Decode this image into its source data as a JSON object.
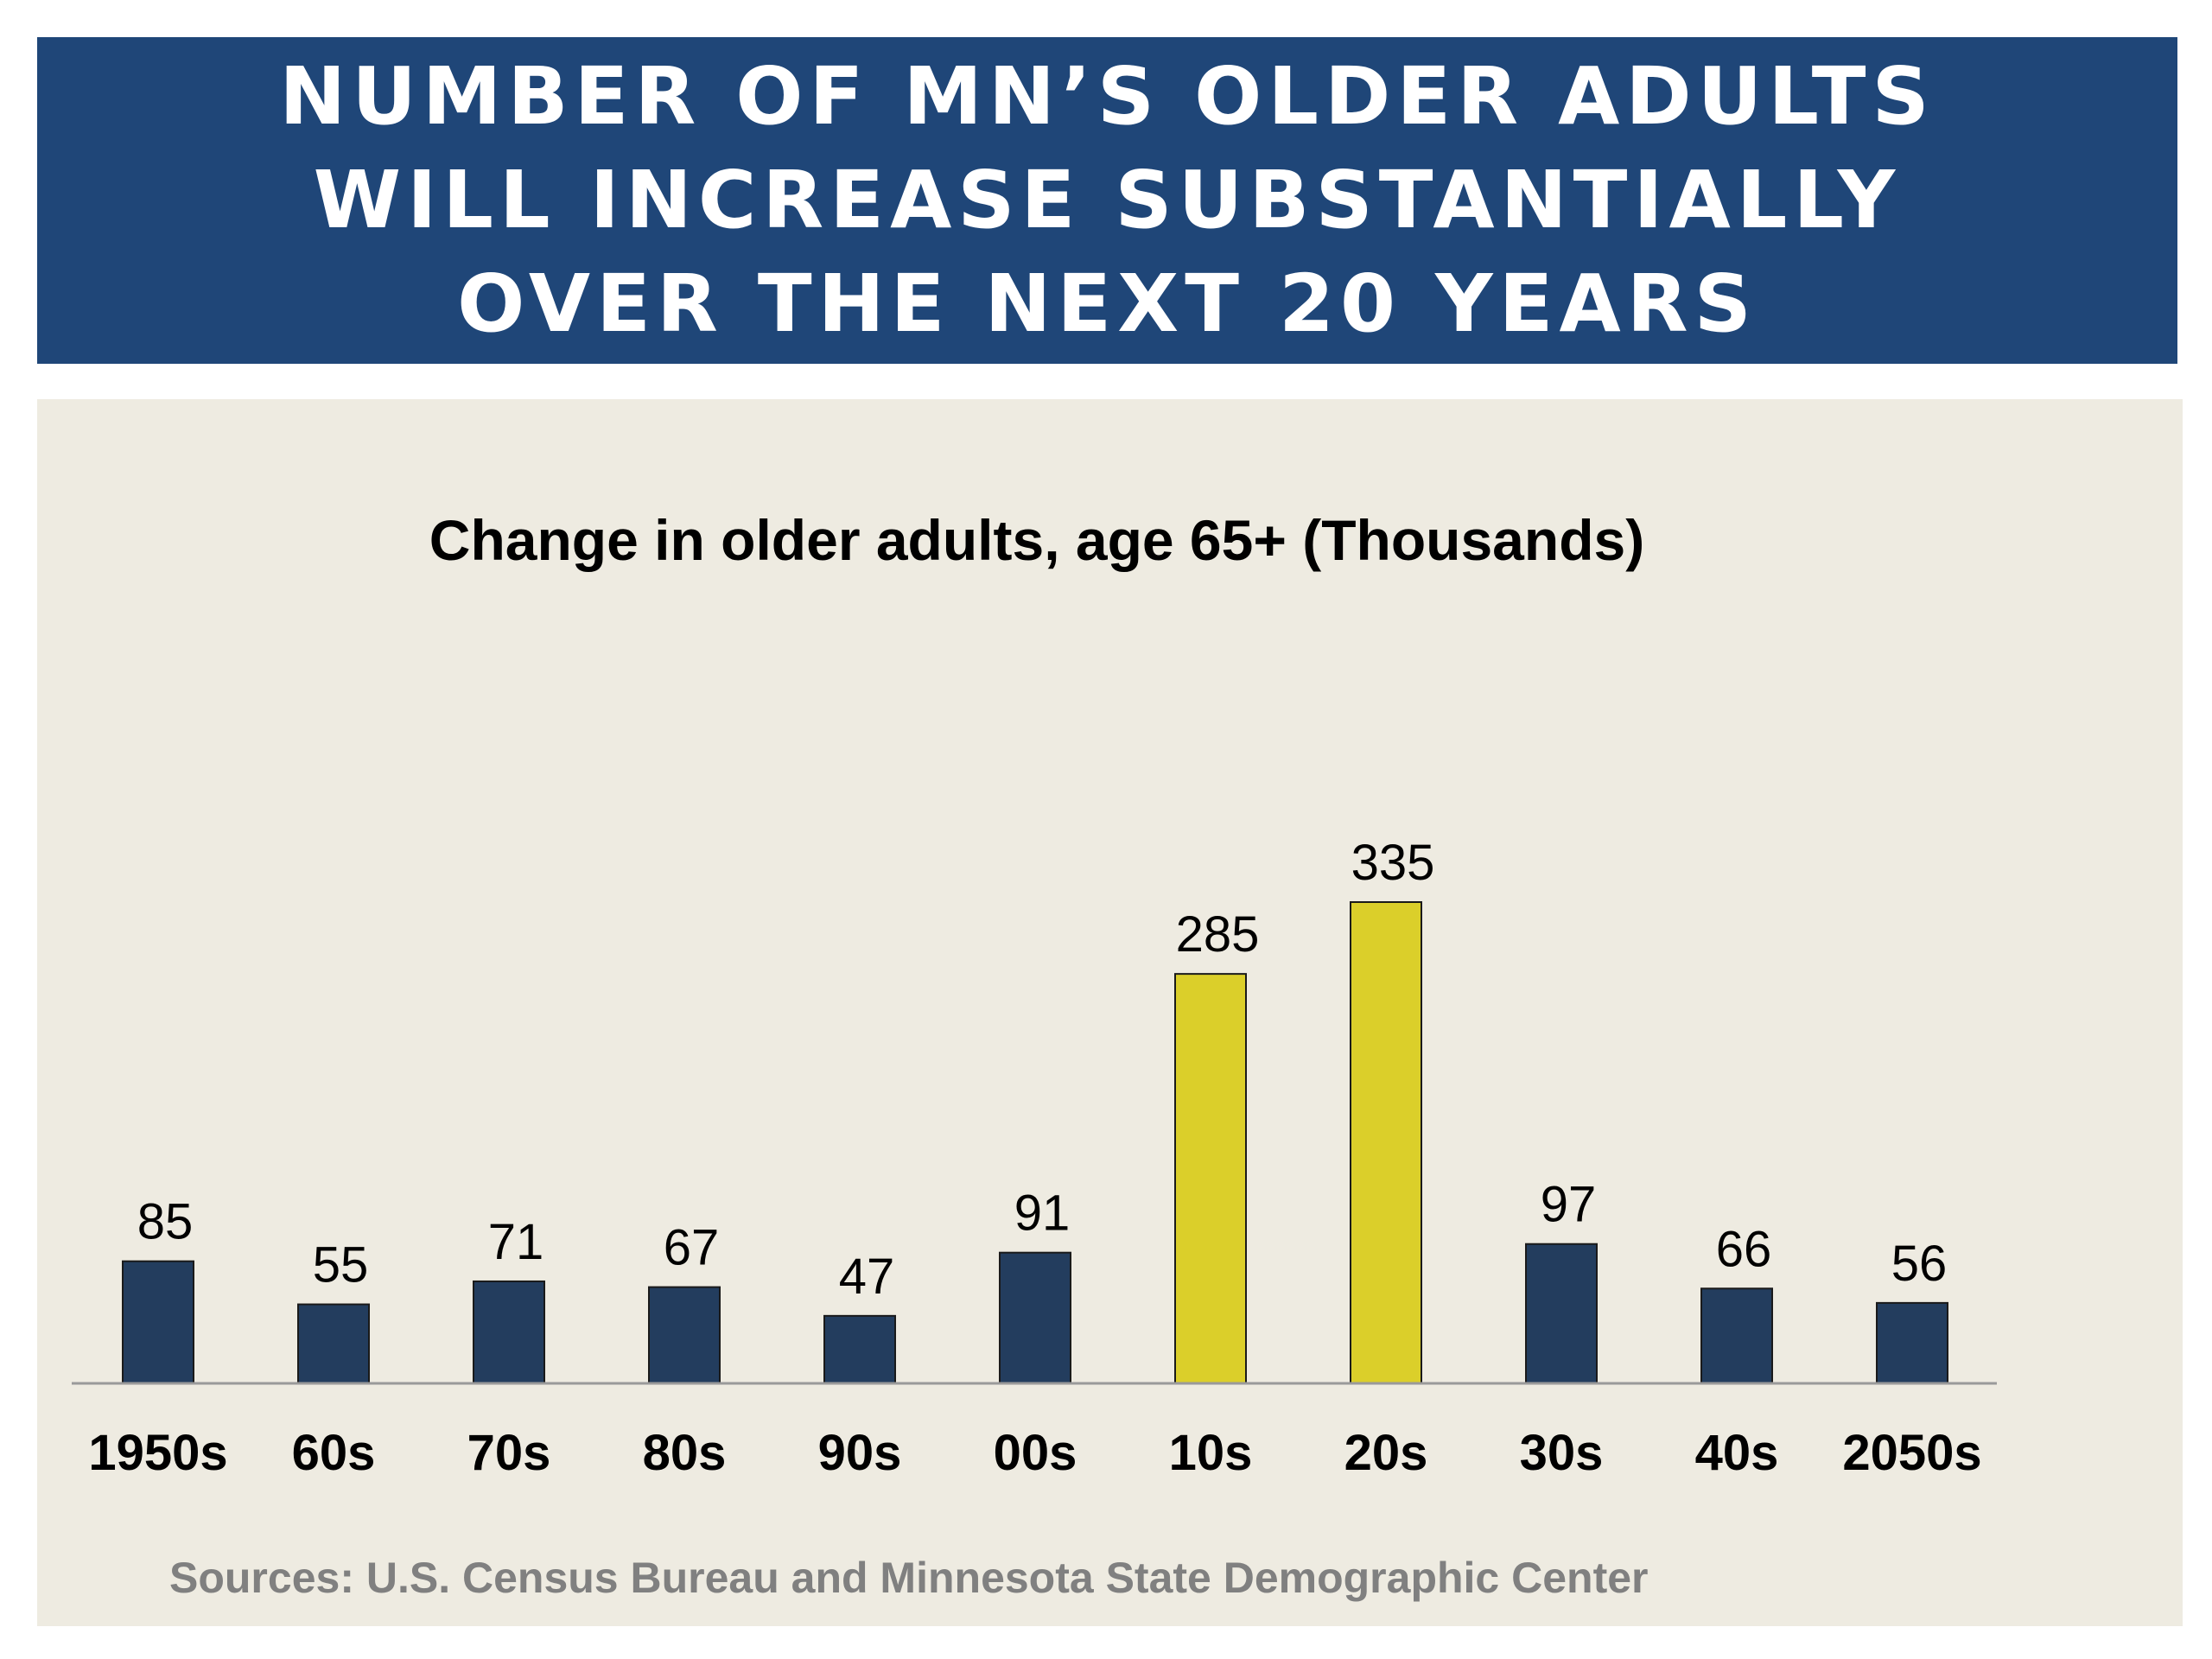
{
  "slide": {
    "banner_title": "NUMBER OF MN’S OLDER ADULTS WILL INCREASE SUBSTANTIALLY OVER THE NEXT 20 YEARS",
    "sources": "Sources: U.S. Census Bureau and Minnesota State Demographic Center"
  },
  "colors": {
    "banner": "#1f4678",
    "panel": "#eeebe1",
    "bar_default": "#233d5e",
    "bar_highlight": "#dbcf2a"
  },
  "chart_data": {
    "type": "bar",
    "title": "Change in older adults, age 65+ (Thousands)",
    "xlabel": "",
    "ylabel": "",
    "categories": [
      "1950s",
      "60s",
      "70s",
      "80s",
      "90s",
      "00s",
      "10s",
      "20s",
      "30s",
      "40s",
      "2050s"
    ],
    "values": [
      85,
      55,
      71,
      67,
      47,
      91,
      285,
      335,
      97,
      66,
      56
    ],
    "highlighted": [
      "10s",
      "20s"
    ],
    "ylim": [
      0,
      335
    ],
    "grid": false,
    "legend": "none",
    "data_labels": true
  }
}
